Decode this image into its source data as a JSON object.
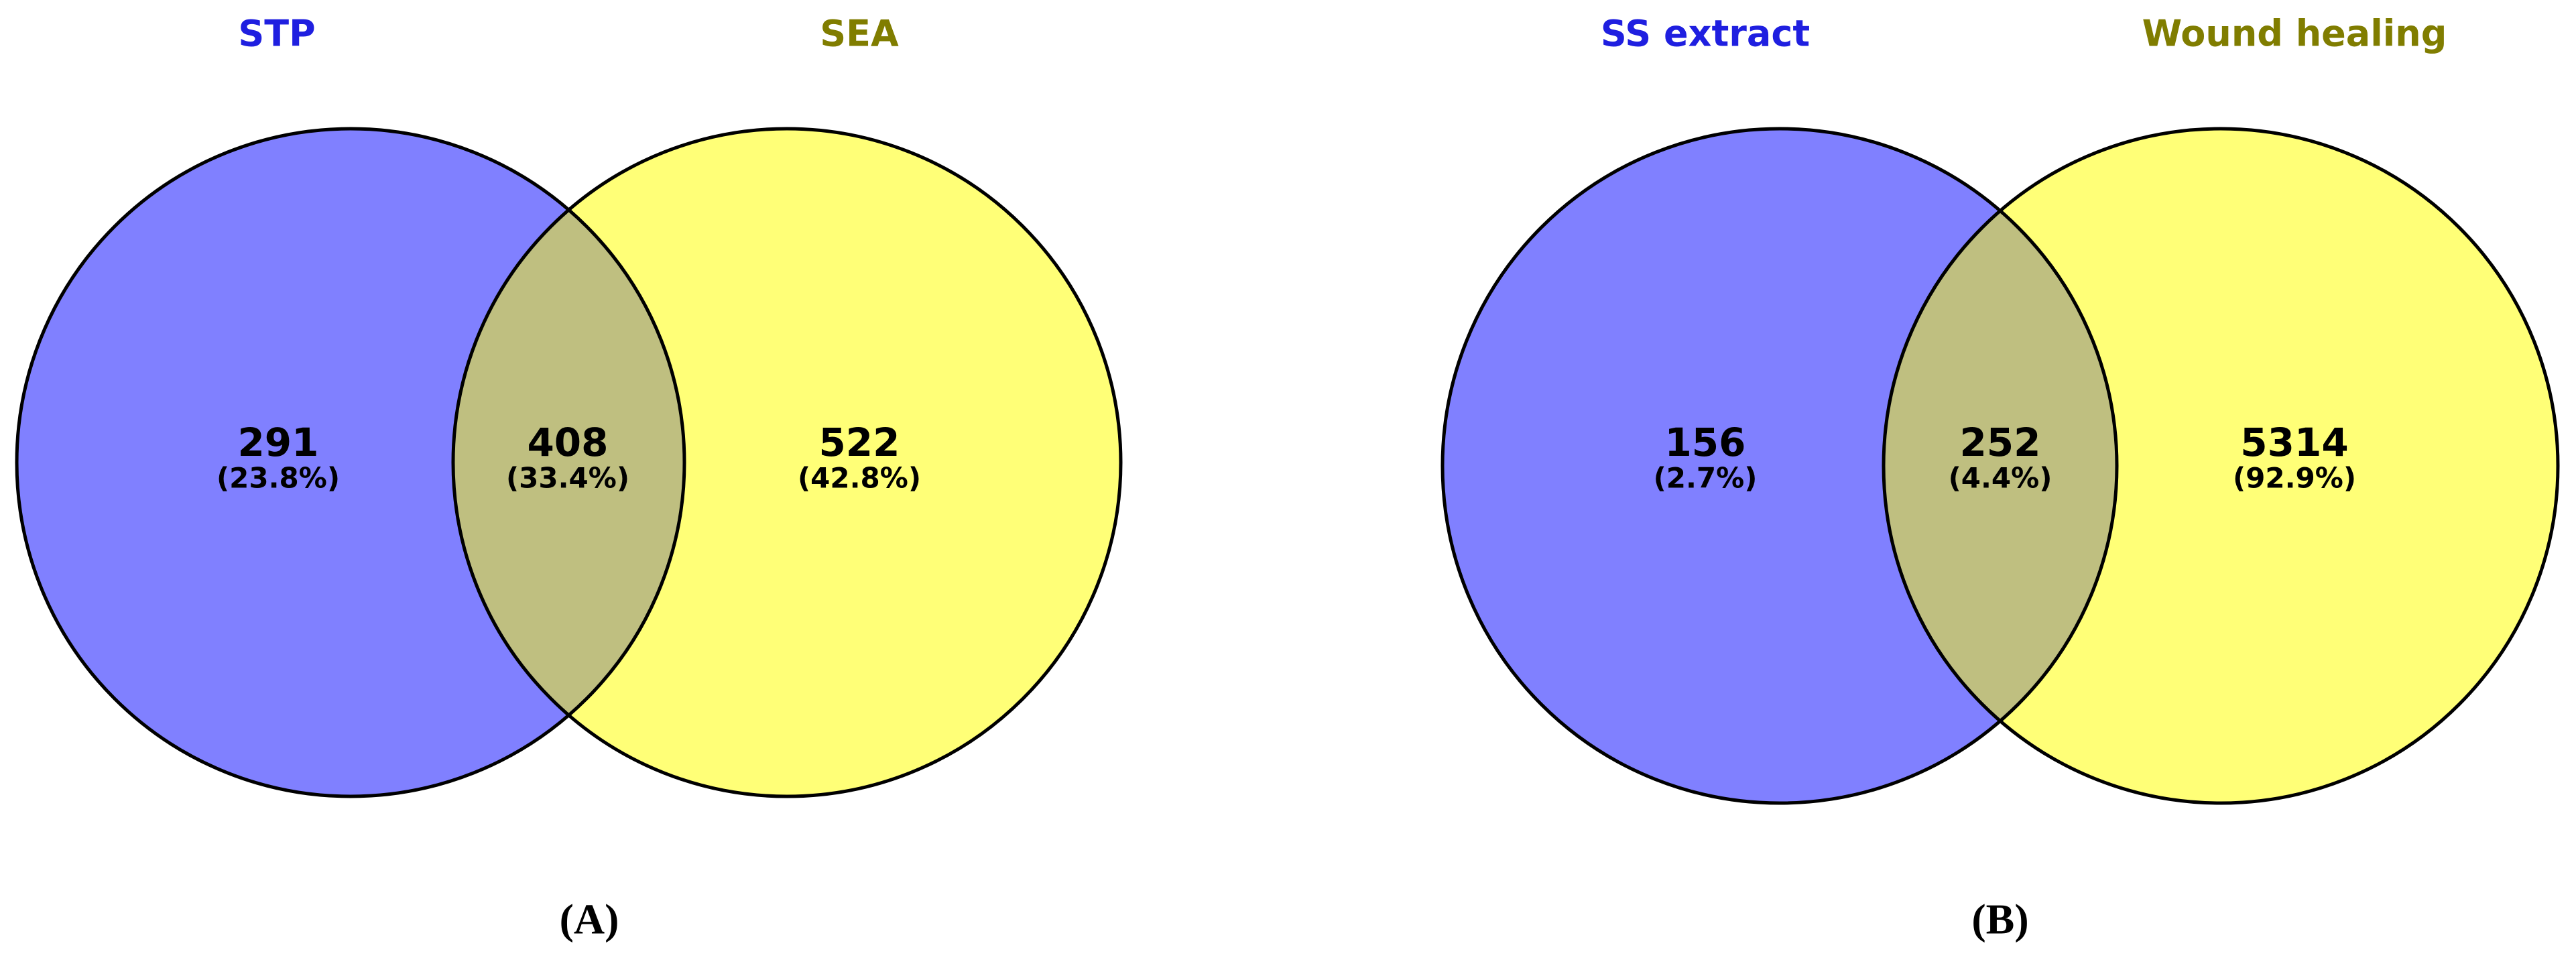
{
  "chart_data": [
    {
      "type": "venn",
      "label": "(A)",
      "sets": [
        {
          "name": "STP",
          "color": "#8080ff",
          "label_color": "#1f1fe0"
        },
        {
          "name": "SEA",
          "color": "#ffff77",
          "label_color": "#807d00"
        }
      ],
      "overlap_color": "#bfbf80",
      "regions": [
        "STP",
        "STP ∩ SEA",
        "SEA"
      ],
      "values": [
        291,
        408,
        522
      ],
      "shares": [
        23.8,
        33.4,
        42.8
      ],
      "share_labels": [
        "(23.8%)",
        "(33.4%)",
        "(42.8%)"
      ]
    },
    {
      "type": "venn",
      "label": "(B)",
      "sets": [
        {
          "name": "SS extract",
          "color": "#8080ff",
          "label_color": "#1f1fe0"
        },
        {
          "name": "Wound healing",
          "color": "#ffff77",
          "label_color": "#807d00"
        }
      ],
      "overlap_color": "#bfbf80",
      "regions": [
        "SS extract",
        "SS extract ∩ Wound healing",
        "Wound healing"
      ],
      "values": [
        156,
        252,
        5314
      ],
      "shares": [
        2.7,
        4.4,
        92.9
      ],
      "share_labels": [
        "(2.7%)",
        "(4.4%)",
        "(92.9%)"
      ]
    }
  ]
}
